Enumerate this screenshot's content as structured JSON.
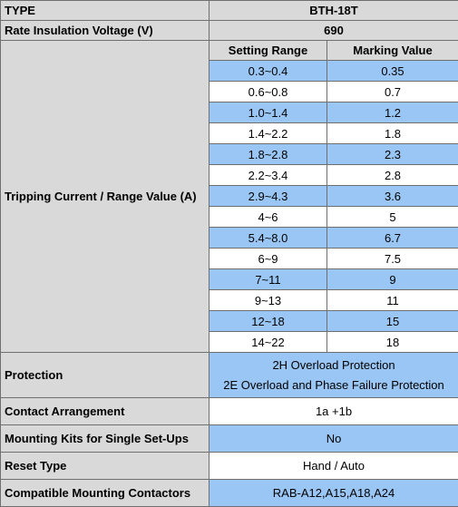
{
  "header": {
    "label": "TYPE",
    "value": "BTH-18T"
  },
  "insulation": {
    "label": "Rate Insulation Voltage (V)",
    "value": "690"
  },
  "tripping": {
    "label": "Tripping Current / Range Value (A)",
    "col_setting": "Setting Range",
    "col_marking": "Marking Value",
    "rows": [
      {
        "range": "0.3~0.4",
        "mark": "0.35"
      },
      {
        "range": "0.6~0.8",
        "mark": "0.7"
      },
      {
        "range": "1.0~1.4",
        "mark": "1.2"
      },
      {
        "range": "1.4~2.2",
        "mark": "1.8"
      },
      {
        "range": "1.8~2.8",
        "mark": "2.3"
      },
      {
        "range": "2.2~3.4",
        "mark": "2.8"
      },
      {
        "range": "2.9~4.3",
        "mark": "3.6"
      },
      {
        "range": "4~6",
        "mark": "5"
      },
      {
        "range": "5.4~8.0",
        "mark": "6.7"
      },
      {
        "range": "6~9",
        "mark": "7.5"
      },
      {
        "range": "7~11",
        "mark": "9"
      },
      {
        "range": "9~13",
        "mark": "11"
      },
      {
        "range": "12~18",
        "mark": "15"
      },
      {
        "range": "14~22",
        "mark": "18"
      }
    ]
  },
  "protection": {
    "label": "Protection",
    "line1": "2H Overload Protection",
    "line2": "2E Overload and Phase Failure Protection"
  },
  "contact": {
    "label": "Contact Arrangement",
    "value": "1a +1b"
  },
  "mounting_kits": {
    "label": "Mounting Kits for Single Set-Ups",
    "value": "No"
  },
  "reset": {
    "label": "Reset Type",
    "value": "Hand / Auto"
  },
  "contactors": {
    "label": "Compatible Mounting Contactors",
    "value": "RAB-A12,A15,A18,A24"
  },
  "colors": {
    "gray": "#d9d9d9",
    "blue": "#99c6f4",
    "white": "#ffffff",
    "border": "#6f6f6f"
  }
}
